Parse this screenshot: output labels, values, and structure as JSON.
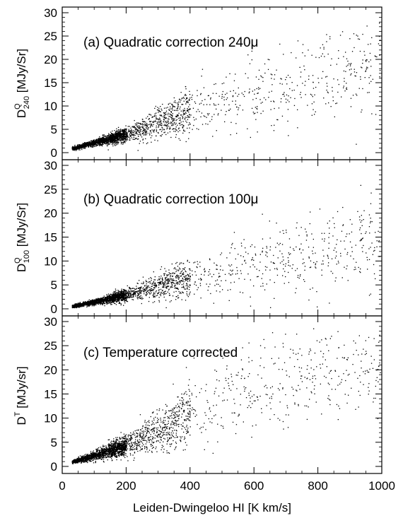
{
  "chart_data": {
    "type": "scatter",
    "xlabel": "Leiden-Dwingeloo HI [K km/s]",
    "xlim": [
      0,
      1000
    ],
    "xticks": [
      "0",
      "200",
      "400",
      "600",
      "800",
      "1000"
    ],
    "panels": [
      {
        "annotation": "(a) Quadratic correction 240μ",
        "ylabel": {
          "main": "D",
          "sup": "Q",
          "sub": "240",
          "unit": " [MJy/Sr]"
        },
        "ylim": [
          0,
          30
        ],
        "yticks": [
          "0",
          "5",
          "10",
          "15",
          "20",
          "25",
          "30"
        ],
        "trend": {
          "x": [
            30,
            100,
            200,
            300,
            400,
            500,
            600,
            700,
            800,
            1000
          ],
          "y_center": [
            0.9,
            2.2,
            4.0,
            6.5,
            9.0,
            11.5,
            13.0,
            14.5,
            16.0,
            18.0
          ],
          "y_spread": [
            0.3,
            0.6,
            1.5,
            3.0,
            4.5,
            6.0,
            7.5,
            8.5,
            9.0,
            10.0
          ]
        },
        "density": "dense at low x, sparse above 500"
      },
      {
        "annotation": "(b) Quadratic correction 100μ",
        "ylabel": {
          "main": "D",
          "sup": "Q",
          "sub": "100",
          "unit": " [MJy/Sr]"
        },
        "ylim": [
          0,
          30
        ],
        "yticks": [
          "0",
          "5",
          "10",
          "15",
          "20",
          "25",
          "30"
        ],
        "trend": {
          "x": [
            30,
            100,
            200,
            300,
            400,
            500,
            600,
            700,
            800,
            1000
          ],
          "y_center": [
            0.5,
            1.5,
            3.0,
            4.8,
            6.5,
            8.0,
            9.5,
            11.0,
            12.0,
            14.0
          ],
          "y_spread": [
            0.3,
            0.5,
            1.2,
            2.5,
            3.5,
            4.5,
            6.0,
            7.0,
            8.0,
            9.0
          ]
        },
        "density": "dense at low x, sparse above 500"
      },
      {
        "annotation": "(c) Temperature corrected",
        "ylabel": {
          "main": "D",
          "sup": "T",
          "sub": "",
          "unit": " [MJy/sr]"
        },
        "ylim": [
          0,
          30
        ],
        "yticks": [
          "0",
          "5",
          "10",
          "15",
          "20",
          "25",
          "30"
        ],
        "trend": {
          "x": [
            30,
            100,
            200,
            300,
            400,
            500,
            600,
            700,
            800,
            1000
          ],
          "y_center": [
            1.0,
            2.3,
            4.5,
            7.5,
            11.0,
            14.0,
            16.5,
            18.0,
            19.0,
            20.0
          ],
          "y_spread": [
            0.3,
            0.8,
            2.0,
            4.0,
            6.0,
            7.5,
            8.5,
            9.0,
            9.0,
            9.0
          ]
        },
        "density": "dense at low x, sparse above 500"
      }
    ],
    "marker": "black dots",
    "grid": false
  }
}
